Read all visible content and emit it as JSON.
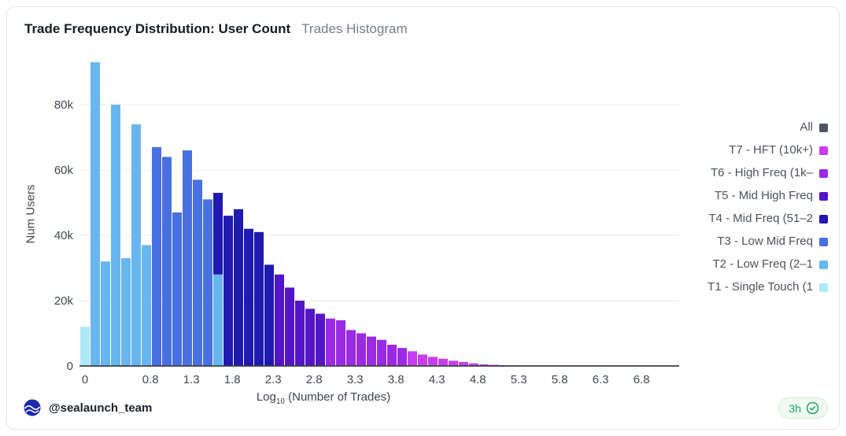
{
  "chart_data": {
    "type": "bar",
    "title": "Trade Frequency Distribution: User Count",
    "subtitle": "Trades Histogram",
    "ylabel": "Num Users",
    "xlabel": {
      "prefix": "Log",
      "sub": "10",
      "suffix": " (Number of Trades)"
    },
    "xlim": [
      -0.1,
      7.3
    ],
    "ylim": [
      0,
      95000
    ],
    "grid": true,
    "bin_width": 0.125,
    "yticks": [
      {
        "v": 0,
        "label": "0"
      },
      {
        "v": 20000,
        "label": "20k"
      },
      {
        "v": 40000,
        "label": "40k"
      },
      {
        "v": 60000,
        "label": "60k"
      },
      {
        "v": 80000,
        "label": "80k"
      }
    ],
    "xticks": [
      {
        "v": 0.0,
        "label": "0"
      },
      {
        "v": 0.8,
        "label": "0.8"
      },
      {
        "v": 1.3,
        "label": "1.3"
      },
      {
        "v": 1.8,
        "label": "1.8"
      },
      {
        "v": 2.3,
        "label": "2.3"
      },
      {
        "v": 2.8,
        "label": "2.8"
      },
      {
        "v": 3.3,
        "label": "3.3"
      },
      {
        "v": 3.8,
        "label": "3.8"
      },
      {
        "v": 4.3,
        "label": "4.3"
      },
      {
        "v": 4.8,
        "label": "4.8"
      },
      {
        "v": 5.3,
        "label": "5.3"
      },
      {
        "v": 5.8,
        "label": "5.8"
      },
      {
        "v": 6.3,
        "label": "6.3"
      },
      {
        "v": 6.8,
        "label": "6.8"
      }
    ],
    "tier_colors": {
      "All": "#51565e",
      "T7": "#c83df0",
      "T6": "#9a2ae4",
      "T5": "#5315c6",
      "T4": "#201ab0",
      "T3": "#4970e2",
      "T2": "#68b6ef",
      "T1": "#ade9f9"
    },
    "legend": {
      "position": "right",
      "items": [
        {
          "label": "All",
          "tier": "All"
        },
        {
          "label": "T7 - HFT (10k+)",
          "tier": "T7"
        },
        {
          "label": "T6 - High Freq (1k–",
          "tier": "T6"
        },
        {
          "label": "T5 - Mid High Freq",
          "tier": "T5"
        },
        {
          "label": "T4 - Mid Freq (51–2",
          "tier": "T4"
        },
        {
          "label": "T3 - Low Mid Freq",
          "tier": "T3"
        },
        {
          "label": "T2 - Low Freq (2–1",
          "tier": "T2"
        },
        {
          "label": "T1 - Single Touch (1",
          "tier": "T1"
        }
      ]
    },
    "bars": [
      {
        "x": 0.0,
        "segments": [
          [
            "T1",
            12000
          ]
        ]
      },
      {
        "x": 0.125,
        "segments": [
          [
            "T2",
            93000
          ]
        ]
      },
      {
        "x": 0.25,
        "segments": [
          [
            "T2",
            32000
          ]
        ]
      },
      {
        "x": 0.375,
        "segments": [
          [
            "T2",
            80000
          ]
        ]
      },
      {
        "x": 0.5,
        "segments": [
          [
            "T2",
            33000
          ]
        ]
      },
      {
        "x": 0.625,
        "segments": [
          [
            "T2",
            74000
          ]
        ]
      },
      {
        "x": 0.75,
        "segments": [
          [
            "T2",
            37000
          ]
        ]
      },
      {
        "x": 0.875,
        "segments": [
          [
            "T3",
            67000
          ]
        ]
      },
      {
        "x": 1.0,
        "segments": [
          [
            "T3",
            64000
          ]
        ]
      },
      {
        "x": 1.125,
        "segments": [
          [
            "T3",
            47000
          ]
        ]
      },
      {
        "x": 1.25,
        "segments": [
          [
            "T3",
            66000
          ]
        ]
      },
      {
        "x": 1.375,
        "segments": [
          [
            "T3",
            57000
          ]
        ]
      },
      {
        "x": 1.5,
        "segments": [
          [
            "T3",
            51000
          ]
        ]
      },
      {
        "x": 1.625,
        "segments": [
          [
            "T2",
            28000
          ],
          [
            "T4",
            25000
          ]
        ]
      },
      {
        "x": 1.75,
        "segments": [
          [
            "T4",
            46000
          ]
        ]
      },
      {
        "x": 1.875,
        "segments": [
          [
            "T4",
            48000
          ]
        ]
      },
      {
        "x": 2.0,
        "segments": [
          [
            "T4",
            42000
          ]
        ]
      },
      {
        "x": 2.125,
        "segments": [
          [
            "T4",
            41000
          ]
        ]
      },
      {
        "x": 2.25,
        "segments": [
          [
            "T4",
            31000
          ]
        ]
      },
      {
        "x": 2.375,
        "segments": [
          [
            "T5",
            28000
          ]
        ]
      },
      {
        "x": 2.5,
        "segments": [
          [
            "T5",
            24000
          ]
        ]
      },
      {
        "x": 2.625,
        "segments": [
          [
            "T5",
            20000
          ]
        ]
      },
      {
        "x": 2.75,
        "segments": [
          [
            "T5",
            17500
          ]
        ]
      },
      {
        "x": 2.875,
        "segments": [
          [
            "T5",
            16000
          ]
        ]
      },
      {
        "x": 3.0,
        "segments": [
          [
            "T6",
            14500
          ]
        ]
      },
      {
        "x": 3.125,
        "segments": [
          [
            "T6",
            14000
          ]
        ]
      },
      {
        "x": 3.25,
        "segments": [
          [
            "T6",
            11000
          ]
        ]
      },
      {
        "x": 3.375,
        "segments": [
          [
            "T6",
            10000
          ]
        ]
      },
      {
        "x": 3.5,
        "segments": [
          [
            "T6",
            9000
          ]
        ]
      },
      {
        "x": 3.625,
        "segments": [
          [
            "T6",
            8000
          ]
        ]
      },
      {
        "x": 3.75,
        "segments": [
          [
            "T6",
            6500
          ]
        ]
      },
      {
        "x": 3.875,
        "segments": [
          [
            "T6",
            5500
          ]
        ]
      },
      {
        "x": 4.0,
        "segments": [
          [
            "T7",
            4500
          ]
        ]
      },
      {
        "x": 4.125,
        "segments": [
          [
            "T7",
            3500
          ]
        ]
      },
      {
        "x": 4.25,
        "segments": [
          [
            "T7",
            2800
          ]
        ]
      },
      {
        "x": 4.375,
        "segments": [
          [
            "T7",
            2200
          ]
        ]
      },
      {
        "x": 4.5,
        "segments": [
          [
            "T7",
            1600
          ]
        ]
      },
      {
        "x": 4.625,
        "segments": [
          [
            "T7",
            1200
          ]
        ]
      },
      {
        "x": 4.75,
        "segments": [
          [
            "T7",
            800
          ]
        ]
      },
      {
        "x": 4.875,
        "segments": [
          [
            "T7",
            500
          ]
        ]
      },
      {
        "x": 5.0,
        "segments": [
          [
            "T7",
            350
          ]
        ]
      },
      {
        "x": 5.125,
        "segments": [
          [
            "T7",
            250
          ]
        ]
      },
      {
        "x": 5.25,
        "segments": [
          [
            "T7",
            150
          ]
        ]
      }
    ]
  },
  "footer": {
    "handle": "@sealaunch_team",
    "badge_time": "3h"
  }
}
